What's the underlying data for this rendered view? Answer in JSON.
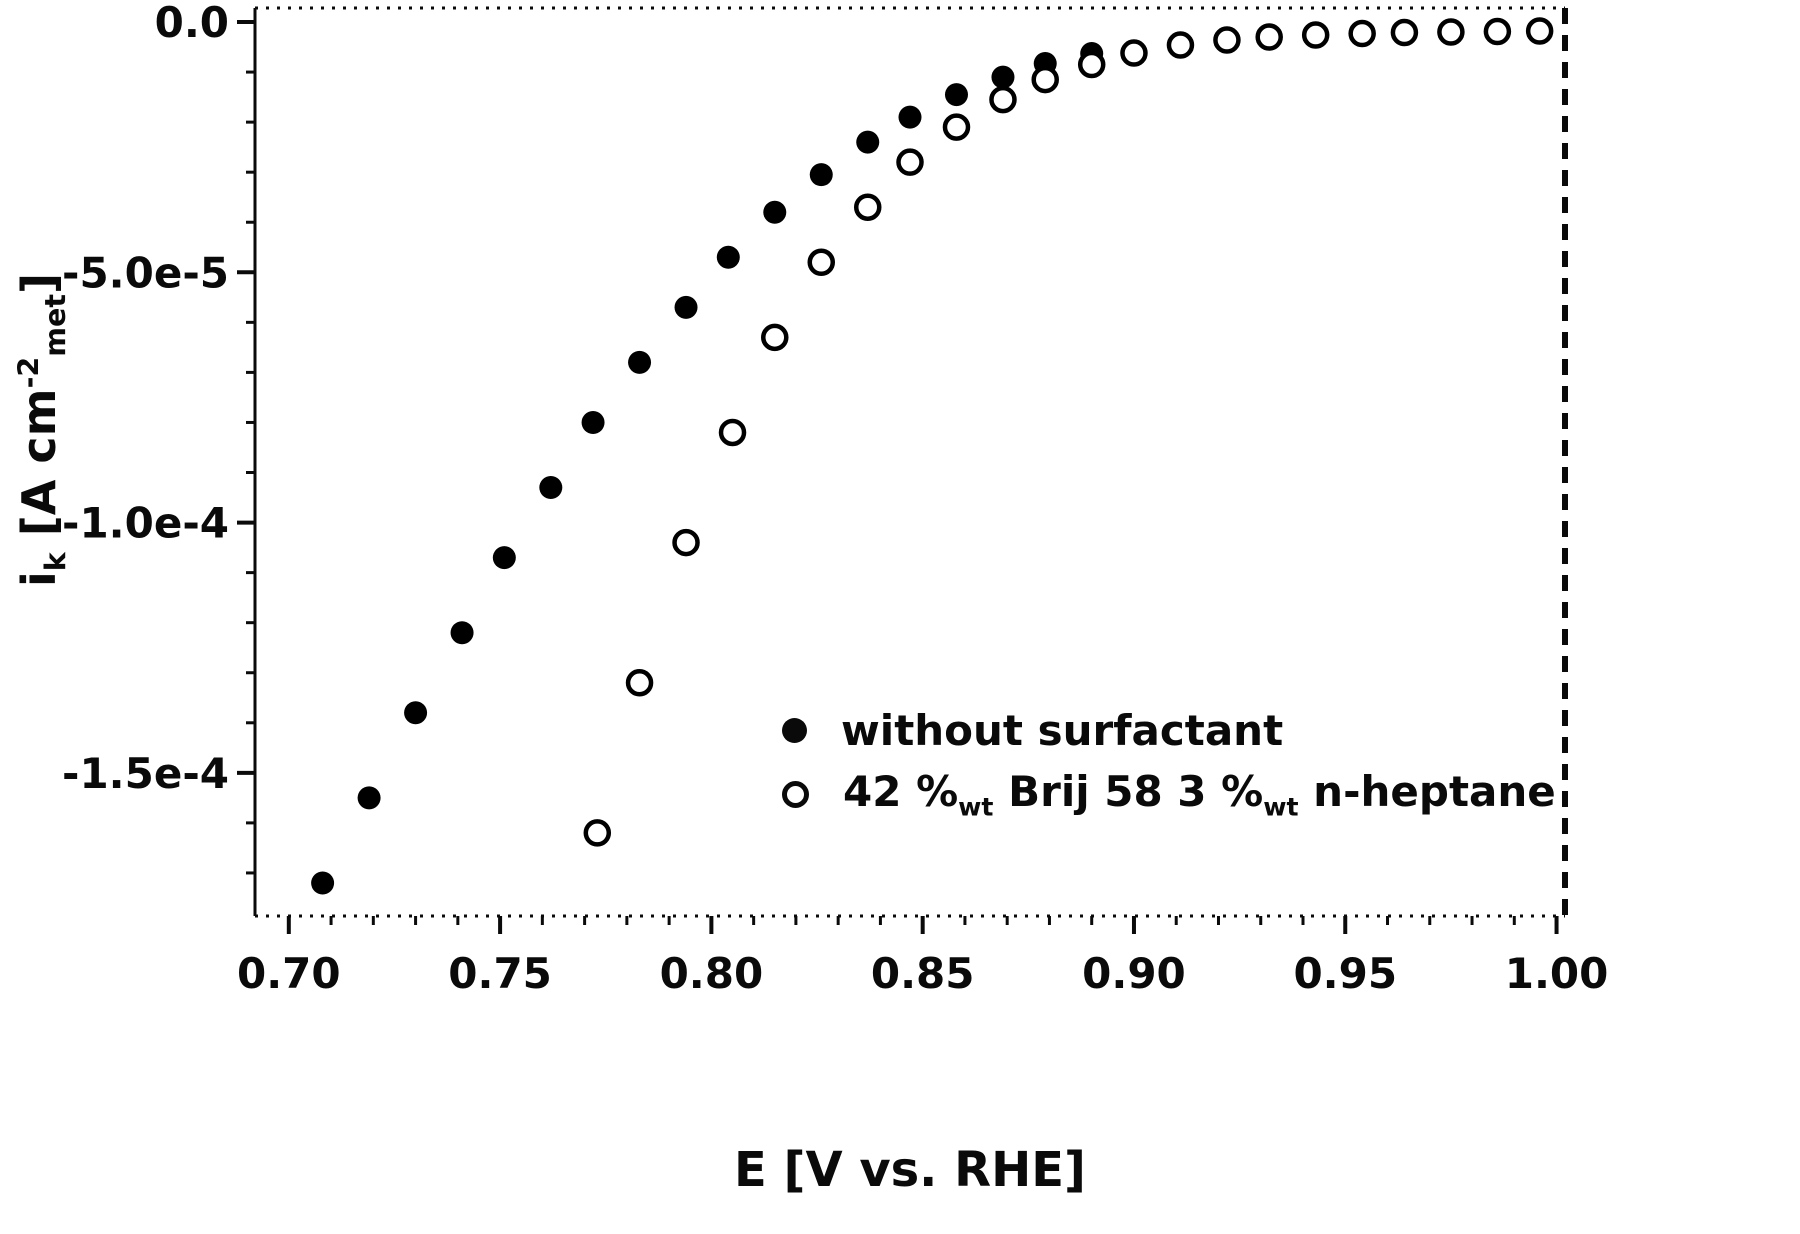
{
  "chart_data": {
    "type": "scatter",
    "title": "",
    "xlabel": "E [V vs. RHE]",
    "ylabel": "i_k [A cm^-2_met]",
    "ylabel_parts": [
      {
        "text": "i",
        "pos": "normal"
      },
      {
        "text": "k",
        "pos": "sub"
      },
      {
        "text": " [A cm",
        "pos": "normal"
      },
      {
        "text": "-2",
        "pos": "sup"
      },
      {
        "text": "met",
        "pos": "sub"
      },
      {
        "text": "]",
        "pos": "normal"
      }
    ],
    "xlim": [
      0.692,
      1.002
    ],
    "ylim": [
      -0.0001786,
      2.8e-06
    ],
    "x_ticks": [
      0.7,
      0.75,
      0.8,
      0.85,
      0.9,
      0.95,
      1.0
    ],
    "x_tick_labels": [
      "0.70",
      "0.75",
      "0.80",
      "0.85",
      "0.90",
      "0.95",
      "1.00"
    ],
    "y_ticks": [
      0.0,
      -5e-05,
      -0.0001,
      -0.00015
    ],
    "y_tick_labels": [
      "0.0",
      "-5.0e-5",
      "-1.0e-4",
      "-1.5e-4"
    ],
    "x_minor_step": 0.01,
    "y_minor_step": 1e-05,
    "grid": false,
    "legend_position": "lower-right",
    "series": [
      {
        "name": "without surfactant",
        "marker": "filled-circle",
        "color": "#000000",
        "label_parts": [
          {
            "text": "without surfactant",
            "pos": "normal"
          }
        ],
        "points": [
          [
            0.708,
            -0.000172
          ],
          [
            0.719,
            -0.000155
          ],
          [
            0.73,
            -0.000138
          ],
          [
            0.741,
            -0.000122
          ],
          [
            0.751,
            -0.000107
          ],
          [
            0.762,
            -9.3e-05
          ],
          [
            0.772,
            -8e-05
          ],
          [
            0.783,
            -6.8e-05
          ],
          [
            0.794,
            -5.7e-05
          ],
          [
            0.804,
            -4.7e-05
          ],
          [
            0.815,
            -3.8e-05
          ],
          [
            0.826,
            -3.05e-05
          ],
          [
            0.837,
            -2.4e-05
          ],
          [
            0.847,
            -1.9e-05
          ],
          [
            0.858,
            -1.45e-05
          ],
          [
            0.869,
            -1.1e-05
          ],
          [
            0.879,
            -8.3e-06
          ],
          [
            0.89,
            -6.3e-06
          ]
        ]
      },
      {
        "name": "42 %wt Brij 58 3 %wt n-heptane",
        "marker": "open-circle",
        "color": "#000000",
        "label_parts": [
          {
            "text": "42 %",
            "pos": "normal"
          },
          {
            "text": "wt",
            "pos": "sub"
          },
          {
            "text": " Brij 58 3 %",
            "pos": "normal"
          },
          {
            "text": "wt",
            "pos": "sub"
          },
          {
            "text": " n-heptane",
            "pos": "normal"
          }
        ],
        "points": [
          [
            0.773,
            -0.000162
          ],
          [
            0.783,
            -0.000132
          ],
          [
            0.794,
            -0.000104
          ],
          [
            0.805,
            -8.2e-05
          ],
          [
            0.815,
            -6.3e-05
          ],
          [
            0.826,
            -4.8e-05
          ],
          [
            0.837,
            -3.7e-05
          ],
          [
            0.847,
            -2.8e-05
          ],
          [
            0.858,
            -2.1e-05
          ],
          [
            0.869,
            -1.55e-05
          ],
          [
            0.879,
            -1.15e-05
          ],
          [
            0.89,
            -8.5e-06
          ],
          [
            0.9,
            -6.2e-06
          ],
          [
            0.911,
            -4.6e-06
          ],
          [
            0.922,
            -3.6e-06
          ],
          [
            0.932,
            -3e-06
          ],
          [
            0.943,
            -2.6e-06
          ],
          [
            0.954,
            -2.3e-06
          ],
          [
            0.964,
            -2.1e-06
          ],
          [
            0.975,
            -2e-06
          ],
          [
            0.986,
            -1.9e-06
          ],
          [
            0.996,
            -1.8e-06
          ]
        ]
      }
    ]
  }
}
